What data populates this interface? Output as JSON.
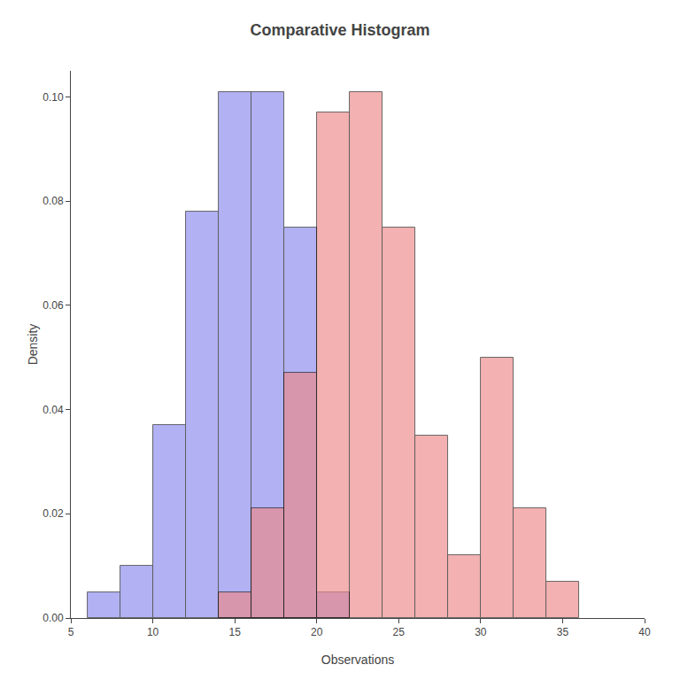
{
  "chart_data": {
    "type": "histogram",
    "title": "Comparative Histogram",
    "xlabel": "Observations",
    "ylabel": "Density",
    "xlim": [
      5,
      40
    ],
    "ylim": [
      0,
      0.105
    ],
    "xticks": [
      5,
      10,
      15,
      20,
      25,
      30,
      35,
      40
    ],
    "yticks": [
      {
        "value": 0,
        "label": "0.00"
      },
      {
        "value": 0.02,
        "label": "0.02"
      },
      {
        "value": 0.04,
        "label": "0.04"
      },
      {
        "value": 0.06,
        "label": "0.06"
      },
      {
        "value": 0.08,
        "label": "0.08"
      },
      {
        "value": 0.1,
        "label": "0.10"
      }
    ],
    "grid": false,
    "series": [
      {
        "color": "#8888EE",
        "bins": [
          6,
          8,
          10,
          12,
          14,
          16,
          18,
          20,
          22
        ],
        "values": [
          0.005,
          0.01,
          0.037,
          0.078,
          0.101,
          0.101,
          0.075,
          0.005
        ]
      },
      {
        "color": "#EE8888",
        "bins": [
          14,
          16,
          18,
          20,
          22,
          24,
          26,
          28,
          30,
          32,
          34,
          36
        ],
        "values": [
          0.005,
          0.021,
          0.047,
          0.097,
          0.101,
          0.075,
          0.035,
          0.012,
          0.05,
          0.021,
          0.007
        ]
      }
    ]
  }
}
